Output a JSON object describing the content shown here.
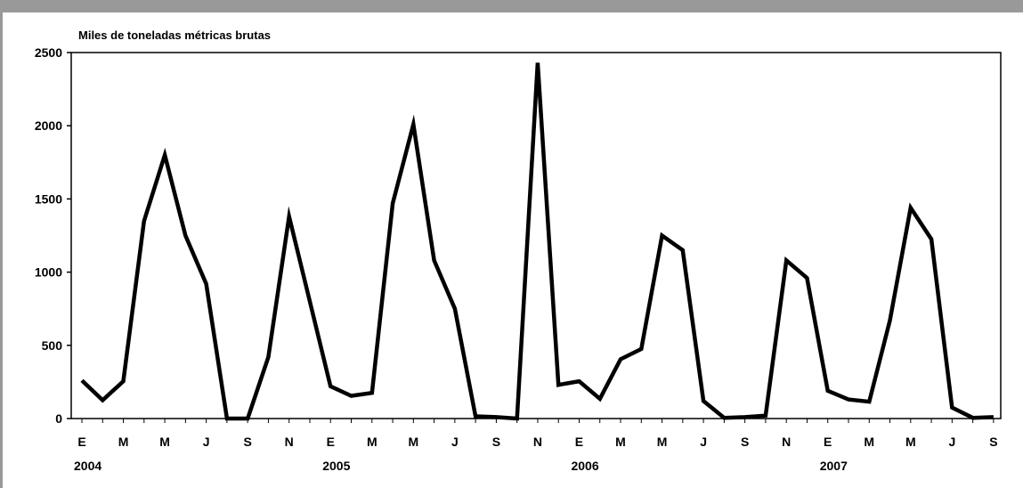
{
  "colors": {
    "top_bar": "#999999",
    "left_rule": "#999999",
    "line": "#000000",
    "frame": "#000000"
  },
  "chart_data": {
    "type": "line",
    "unit_label": "Miles de toneladas métricas brutas",
    "title": "",
    "xlabel": "",
    "ylabel": "",
    "ylim": [
      0,
      2500
    ],
    "yticks": [
      0,
      500,
      1000,
      1500,
      2000,
      2500
    ],
    "grid": false,
    "month_labels": [
      "E",
      "M",
      "M",
      "J",
      "S",
      "N",
      "E",
      "M",
      "M",
      "J",
      "S",
      "N",
      "E",
      "M",
      "M",
      "J",
      "S",
      "N",
      "E",
      "M",
      "M",
      "J",
      "S"
    ],
    "year_labels": [
      {
        "label": "2004",
        "month_index": 0
      },
      {
        "label": "2005",
        "month_index": 12
      },
      {
        "label": "2006",
        "month_index": 24
      },
      {
        "label": "2007",
        "month_index": 36
      }
    ],
    "x": [
      "2004-01",
      "2004-02",
      "2004-03",
      "2004-04",
      "2004-05",
      "2004-06",
      "2004-07",
      "2004-08",
      "2004-09",
      "2004-10",
      "2004-11",
      "2004-12",
      "2005-01",
      "2005-02",
      "2005-03",
      "2005-04",
      "2005-05",
      "2005-06",
      "2005-07",
      "2005-08",
      "2005-09",
      "2005-10",
      "2005-11",
      "2005-12",
      "2006-01",
      "2006-02",
      "2006-03",
      "2006-04",
      "2006-05",
      "2006-06",
      "2006-07",
      "2006-08",
      "2006-09",
      "2006-10",
      "2006-11",
      "2006-12",
      "2007-01",
      "2007-02",
      "2007-03",
      "2007-04",
      "2007-05",
      "2007-06",
      "2007-07",
      "2007-08",
      "2007-09"
    ],
    "series": [
      {
        "values": [
          260,
          125,
          255,
          1350,
          1800,
          1250,
          920,
          0,
          0,
          420,
          1380,
          800,
          220,
          155,
          175,
          1470,
          2010,
          1080,
          750,
          15,
          10,
          0,
          2430,
          230,
          255,
          135,
          405,
          475,
          1250,
          1150,
          120,
          5,
          10,
          20,
          1080,
          960,
          190,
          130,
          115,
          670,
          1440,
          1225,
          75,
          5,
          10
        ]
      }
    ]
  }
}
